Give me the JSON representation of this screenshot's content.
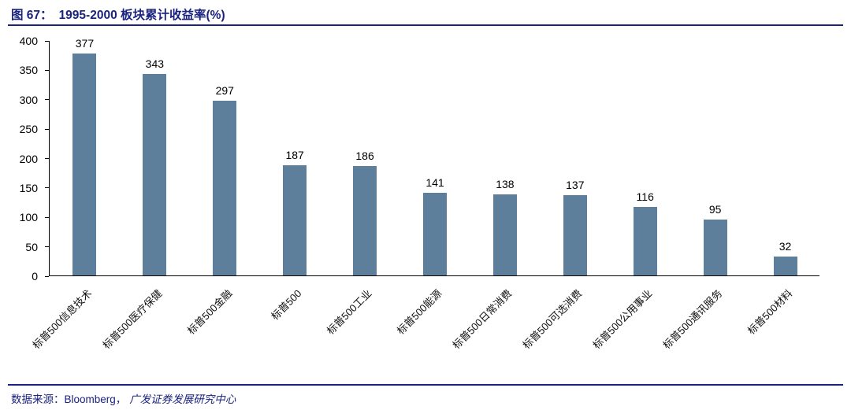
{
  "header": {
    "figure_label": "图 67：",
    "title": "1995-2000 板块累计收益率(%)"
  },
  "footer": {
    "source_label": "数据来源：Bloomberg，",
    "source_org": "广发证券发展研究中心"
  },
  "colors": {
    "accent_navy": "#1a237e",
    "bar": "#5e7f9c",
    "axis": "#000000",
    "text": "#000000"
  },
  "chart_data": {
    "type": "bar",
    "title": "图 67：1995-2000 板块累计收益率(%)",
    "categories": [
      "标普500信息技术",
      "标普500医疗保健",
      "标普500金融",
      "标普500",
      "标普500工业",
      "标普500能源",
      "标普500日常消费",
      "标普500可选消费",
      "标普500公用事业",
      "标普500通讯服务",
      "标普500材料"
    ],
    "values": [
      377,
      343,
      297,
      187,
      186,
      141,
      138,
      137,
      116,
      95,
      32
    ],
    "xlabel": "",
    "ylabel": "",
    "ylim": [
      0,
      400
    ],
    "ytick_step": 50,
    "grid": false,
    "legend": "none",
    "bar_color": "#5e7f9c",
    "value_labels": true,
    "x_tick_rotation": 45
  }
}
